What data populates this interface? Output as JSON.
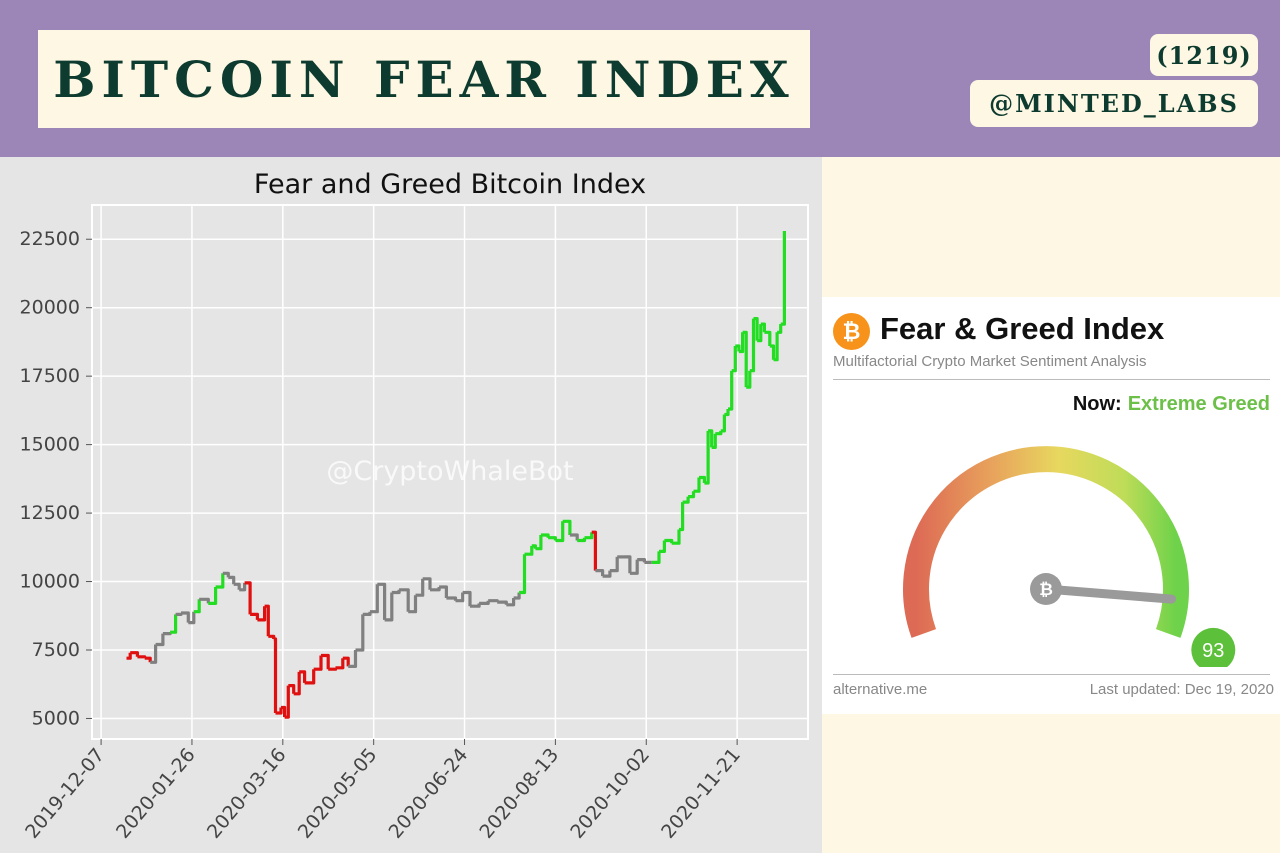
{
  "header": {
    "title": "BITCOIN FEAR INDEX",
    "count_badge": "(1219)",
    "handle": "@MINTED_LABS"
  },
  "colors": {
    "header_bg": "#9c86b7",
    "cream": "#fdf7e3",
    "title_text": "#0d3b2f",
    "fear": "#e01010",
    "neutral": "#808080",
    "greed": "#22dd22"
  },
  "chart_data": {
    "type": "line",
    "title": "Fear and Greed Bitcoin Index",
    "watermark": "@CryptoWhaleBot",
    "xlabel": "",
    "ylabel": "",
    "x_ticks": [
      "2019-12-07",
      "2020-01-26",
      "2020-03-16",
      "2020-05-05",
      "2020-06-24",
      "2020-08-13",
      "2020-10-02",
      "2020-11-21"
    ],
    "y_ticks": [
      5000,
      7500,
      10000,
      12500,
      15000,
      17500,
      20000,
      22500
    ],
    "ylim": [
      4250,
      23750
    ],
    "xlim": [
      "2019-12-02",
      "2020-12-30"
    ],
    "grid": true,
    "line_color_meaning": "line colored by sentiment: red = fear, grey = neutral, green = greed",
    "series": [
      {
        "points": [
          {
            "date": "2019-12-21",
            "value": 7200,
            "sentiment": "neutral"
          },
          {
            "date": "2019-12-23",
            "value": 7400,
            "sentiment": "fear"
          },
          {
            "date": "2019-12-27",
            "value": 7250,
            "sentiment": "fear"
          },
          {
            "date": "2019-12-31",
            "value": 7200,
            "sentiment": "fear"
          },
          {
            "date": "2020-01-03",
            "value": 7050,
            "sentiment": "fear"
          },
          {
            "date": "2020-01-06",
            "value": 7700,
            "sentiment": "neutral"
          },
          {
            "date": "2020-01-10",
            "value": 8100,
            "sentiment": "neutral"
          },
          {
            "date": "2020-01-14",
            "value": 8150,
            "sentiment": "neutral"
          },
          {
            "date": "2020-01-17",
            "value": 8800,
            "sentiment": "greed"
          },
          {
            "date": "2020-01-20",
            "value": 8850,
            "sentiment": "neutral"
          },
          {
            "date": "2020-01-24",
            "value": 8500,
            "sentiment": "neutral"
          },
          {
            "date": "2020-01-27",
            "value": 8900,
            "sentiment": "neutral"
          },
          {
            "date": "2020-01-30",
            "value": 9350,
            "sentiment": "greed"
          },
          {
            "date": "2020-02-04",
            "value": 9200,
            "sentiment": "neutral"
          },
          {
            "date": "2020-02-08",
            "value": 9800,
            "sentiment": "greed"
          },
          {
            "date": "2020-02-12",
            "value": 10300,
            "sentiment": "greed"
          },
          {
            "date": "2020-02-15",
            "value": 10150,
            "sentiment": "neutral"
          },
          {
            "date": "2020-02-18",
            "value": 9900,
            "sentiment": "neutral"
          },
          {
            "date": "2020-02-21",
            "value": 9700,
            "sentiment": "neutral"
          },
          {
            "date": "2020-02-24",
            "value": 9950,
            "sentiment": "neutral"
          },
          {
            "date": "2020-02-27",
            "value": 8800,
            "sentiment": "fear"
          },
          {
            "date": "2020-03-02",
            "value": 8600,
            "sentiment": "fear"
          },
          {
            "date": "2020-03-06",
            "value": 9100,
            "sentiment": "fear"
          },
          {
            "date": "2020-03-08",
            "value": 8000,
            "sentiment": "fear"
          },
          {
            "date": "2020-03-11",
            "value": 7900,
            "sentiment": "fear"
          },
          {
            "date": "2020-03-12",
            "value": 5200,
            "sentiment": "fear"
          },
          {
            "date": "2020-03-15",
            "value": 5400,
            "sentiment": "fear"
          },
          {
            "date": "2020-03-17",
            "value": 5050,
            "sentiment": "fear"
          },
          {
            "date": "2020-03-19",
            "value": 6200,
            "sentiment": "fear"
          },
          {
            "date": "2020-03-22",
            "value": 5900,
            "sentiment": "fear"
          },
          {
            "date": "2020-03-25",
            "value": 6700,
            "sentiment": "fear"
          },
          {
            "date": "2020-03-28",
            "value": 6300,
            "sentiment": "fear"
          },
          {
            "date": "2020-04-02",
            "value": 6800,
            "sentiment": "fear"
          },
          {
            "date": "2020-04-06",
            "value": 7300,
            "sentiment": "fear"
          },
          {
            "date": "2020-04-10",
            "value": 6800,
            "sentiment": "fear"
          },
          {
            "date": "2020-04-14",
            "value": 6850,
            "sentiment": "fear"
          },
          {
            "date": "2020-04-18",
            "value": 7200,
            "sentiment": "fear"
          },
          {
            "date": "2020-04-21",
            "value": 6900,
            "sentiment": "fear"
          },
          {
            "date": "2020-04-25",
            "value": 7500,
            "sentiment": "neutral"
          },
          {
            "date": "2020-04-29",
            "value": 8800,
            "sentiment": "neutral"
          },
          {
            "date": "2020-05-03",
            "value": 8900,
            "sentiment": "neutral"
          },
          {
            "date": "2020-05-07",
            "value": 9900,
            "sentiment": "neutral"
          },
          {
            "date": "2020-05-11",
            "value": 8600,
            "sentiment": "neutral"
          },
          {
            "date": "2020-05-15",
            "value": 9600,
            "sentiment": "neutral"
          },
          {
            "date": "2020-05-19",
            "value": 9700,
            "sentiment": "neutral"
          },
          {
            "date": "2020-05-24",
            "value": 8900,
            "sentiment": "neutral"
          },
          {
            "date": "2020-05-28",
            "value": 9500,
            "sentiment": "neutral"
          },
          {
            "date": "2020-06-01",
            "value": 10100,
            "sentiment": "neutral"
          },
          {
            "date": "2020-06-05",
            "value": 9700,
            "sentiment": "neutral"
          },
          {
            "date": "2020-06-10",
            "value": 9800,
            "sentiment": "neutral"
          },
          {
            "date": "2020-06-14",
            "value": 9400,
            "sentiment": "neutral"
          },
          {
            "date": "2020-06-19",
            "value": 9300,
            "sentiment": "neutral"
          },
          {
            "date": "2020-06-23",
            "value": 9600,
            "sentiment": "neutral"
          },
          {
            "date": "2020-06-27",
            "value": 9100,
            "sentiment": "neutral"
          },
          {
            "date": "2020-07-02",
            "value": 9200,
            "sentiment": "neutral"
          },
          {
            "date": "2020-07-07",
            "value": 9300,
            "sentiment": "neutral"
          },
          {
            "date": "2020-07-12",
            "value": 9250,
            "sentiment": "neutral"
          },
          {
            "date": "2020-07-17",
            "value": 9150,
            "sentiment": "neutral"
          },
          {
            "date": "2020-07-21",
            "value": 9400,
            "sentiment": "neutral"
          },
          {
            "date": "2020-07-24",
            "value": 9600,
            "sentiment": "neutral"
          },
          {
            "date": "2020-07-27",
            "value": 11000,
            "sentiment": "greed"
          },
          {
            "date": "2020-07-31",
            "value": 11300,
            "sentiment": "greed"
          },
          {
            "date": "2020-08-02",
            "value": 11200,
            "sentiment": "greed"
          },
          {
            "date": "2020-08-05",
            "value": 11700,
            "sentiment": "greed"
          },
          {
            "date": "2020-08-09",
            "value": 11600,
            "sentiment": "greed"
          },
          {
            "date": "2020-08-13",
            "value": 11500,
            "sentiment": "greed"
          },
          {
            "date": "2020-08-17",
            "value": 12200,
            "sentiment": "greed"
          },
          {
            "date": "2020-08-21",
            "value": 11700,
            "sentiment": "greed"
          },
          {
            "date": "2020-08-25",
            "value": 11500,
            "sentiment": "neutral"
          },
          {
            "date": "2020-08-29",
            "value": 11600,
            "sentiment": "greed"
          },
          {
            "date": "2020-09-02",
            "value": 11800,
            "sentiment": "greed"
          },
          {
            "date": "2020-09-04",
            "value": 10400,
            "sentiment": "fear"
          },
          {
            "date": "2020-09-08",
            "value": 10200,
            "sentiment": "neutral"
          },
          {
            "date": "2020-09-12",
            "value": 10400,
            "sentiment": "neutral"
          },
          {
            "date": "2020-09-16",
            "value": 10900,
            "sentiment": "neutral"
          },
          {
            "date": "2020-09-20",
            "value": 10900,
            "sentiment": "neutral"
          },
          {
            "date": "2020-09-23",
            "value": 10300,
            "sentiment": "neutral"
          },
          {
            "date": "2020-09-27",
            "value": 10800,
            "sentiment": "neutral"
          },
          {
            "date": "2020-10-01",
            "value": 10700,
            "sentiment": "neutral"
          },
          {
            "date": "2020-10-05",
            "value": 10700,
            "sentiment": "neutral"
          },
          {
            "date": "2020-10-09",
            "value": 11100,
            "sentiment": "greed"
          },
          {
            "date": "2020-10-12",
            "value": 11500,
            "sentiment": "greed"
          },
          {
            "date": "2020-10-16",
            "value": 11400,
            "sentiment": "greed"
          },
          {
            "date": "2020-10-20",
            "value": 11900,
            "sentiment": "greed"
          },
          {
            "date": "2020-10-22",
            "value": 12900,
            "sentiment": "greed"
          },
          {
            "date": "2020-10-25",
            "value": 13100,
            "sentiment": "greed"
          },
          {
            "date": "2020-10-28",
            "value": 13300,
            "sentiment": "greed"
          },
          {
            "date": "2020-10-31",
            "value": 13800,
            "sentiment": "greed"
          },
          {
            "date": "2020-11-03",
            "value": 13600,
            "sentiment": "greed"
          },
          {
            "date": "2020-11-05",
            "value": 15500,
            "sentiment": "greed"
          },
          {
            "date": "2020-11-07",
            "value": 14900,
            "sentiment": "greed"
          },
          {
            "date": "2020-11-09",
            "value": 15400,
            "sentiment": "greed"
          },
          {
            "date": "2020-11-12",
            "value": 15500,
            "sentiment": "greed"
          },
          {
            "date": "2020-11-14",
            "value": 16100,
            "sentiment": "greed"
          },
          {
            "date": "2020-11-16",
            "value": 16300,
            "sentiment": "greed"
          },
          {
            "date": "2020-11-18",
            "value": 17700,
            "sentiment": "greed"
          },
          {
            "date": "2020-11-20",
            "value": 18600,
            "sentiment": "greed"
          },
          {
            "date": "2020-11-22",
            "value": 18400,
            "sentiment": "greed"
          },
          {
            "date": "2020-11-24",
            "value": 19100,
            "sentiment": "greed"
          },
          {
            "date": "2020-11-26",
            "value": 17100,
            "sentiment": "greed"
          },
          {
            "date": "2020-11-28",
            "value": 17700,
            "sentiment": "greed"
          },
          {
            "date": "2020-11-30",
            "value": 19600,
            "sentiment": "greed"
          },
          {
            "date": "2020-12-02",
            "value": 18800,
            "sentiment": "greed"
          },
          {
            "date": "2020-12-04",
            "value": 19400,
            "sentiment": "greed"
          },
          {
            "date": "2020-12-06",
            "value": 19100,
            "sentiment": "greed"
          },
          {
            "date": "2020-12-09",
            "value": 18600,
            "sentiment": "greed"
          },
          {
            "date": "2020-12-11",
            "value": 18100,
            "sentiment": "greed"
          },
          {
            "date": "2020-12-13",
            "value": 19100,
            "sentiment": "greed"
          },
          {
            "date": "2020-12-15",
            "value": 19400,
            "sentiment": "greed"
          },
          {
            "date": "2020-12-17",
            "value": 22800,
            "sentiment": "greed"
          }
        ]
      }
    ]
  },
  "fear_greed_card": {
    "title": "Fear & Greed Index",
    "logo_symbol": "₿",
    "subtitle": "Multifactorial Crypto Market Sentiment Analysis",
    "now_label": "Now:",
    "now_value": "Extreme Greed",
    "gauge_value": 93,
    "gauge_range": [
      0,
      100
    ],
    "gauge_value_color": "#5cc03a",
    "footer_source": "alternative.me",
    "footer_updated": "Last updated: Dec 19, 2020"
  }
}
